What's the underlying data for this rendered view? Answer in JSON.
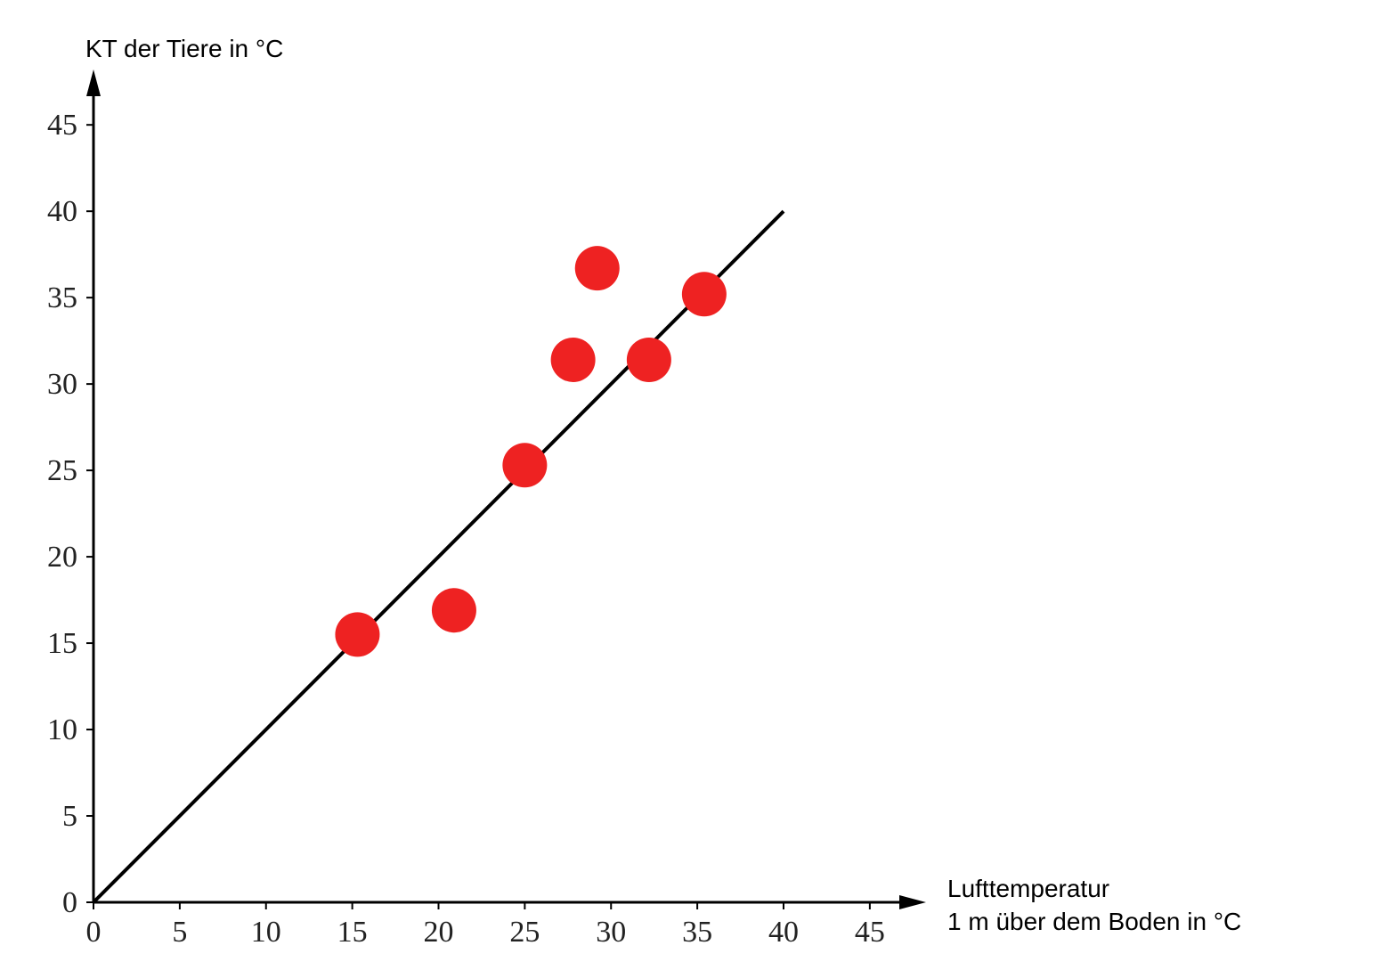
{
  "chart_data": {
    "type": "scatter",
    "ylabel": "KT der Tiere in °C",
    "xlabel": [
      "Lufttemperatur",
      "1 m über dem Boden in °C"
    ],
    "x": [
      15.3,
      20.9,
      25.0,
      27.8,
      29.2,
      32.2,
      35.4
    ],
    "y": [
      15.5,
      16.9,
      25.3,
      31.4,
      36.7,
      31.4,
      35.2
    ],
    "color": "#ee2222",
    "line": {
      "x": [
        0,
        40
      ],
      "y": [
        0,
        40
      ],
      "color": "#000000"
    },
    "xlim": [
      0,
      48
    ],
    "ylim": [
      0,
      48
    ],
    "xticks": [
      0,
      5,
      10,
      15,
      20,
      25,
      30,
      35,
      40,
      45
    ],
    "yticks": [
      0,
      5,
      10,
      15,
      20,
      25,
      30,
      35,
      40,
      45
    ],
    "grid": false
  }
}
